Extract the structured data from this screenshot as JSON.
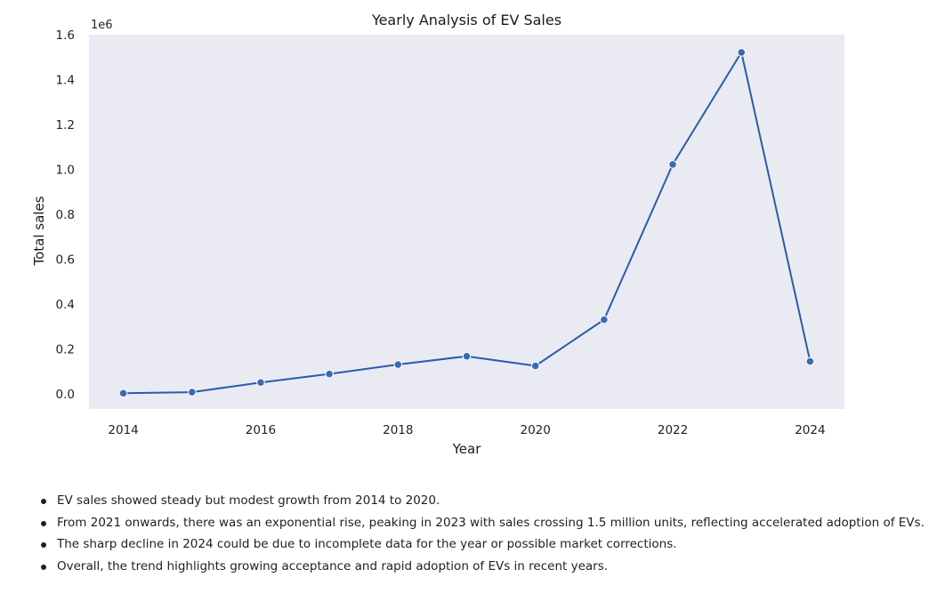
{
  "chart_data": {
    "type": "line",
    "title": "Yearly Analysis of EV Sales",
    "xlabel": "Year",
    "ylabel": "Total sales",
    "y_scale_label": "1e6",
    "x": [
      2014,
      2015,
      2016,
      2017,
      2018,
      2019,
      2020,
      2021,
      2022,
      2023,
      2024
    ],
    "series": [
      {
        "values": [
          2000,
          7000,
          50000,
          88000,
          130000,
          167000,
          124000,
          330000,
          1022000,
          1521000,
          144000
        ]
      }
    ],
    "xticks": [
      2014,
      2016,
      2018,
      2020,
      2022,
      2024
    ],
    "xtick_labels": [
      "2014",
      "2016",
      "2018",
      "2020",
      "2022",
      "2024"
    ],
    "yticks": [
      0,
      200000,
      400000,
      600000,
      800000,
      1000000,
      1200000,
      1400000,
      1600000
    ],
    "ytick_labels": [
      "0.0",
      "0.2",
      "0.4",
      "0.6",
      "0.8",
      "1.0",
      "1.2",
      "1.4",
      "1.6"
    ],
    "xlim": [
      2013.5,
      2024.5
    ],
    "ylim": [
      -68000,
      1600000
    ],
    "grid": false,
    "background": "#eaeaf2",
    "line_color": "#2a5caa",
    "marker_fill": "#3a6cb5"
  },
  "notes": [
    "EV sales showed steady but modest growth from 2014 to 2020.",
    "From 2021 onwards, there was an exponential rise, peaking in 2023 with sales crossing 1.5 million units, reflecting accelerated adoption of EVs.",
    "The sharp decline in 2024 could be due to incomplete data for the year or possible market corrections.",
    "Overall, the trend highlights growing acceptance and rapid adoption of EVs in recent years."
  ]
}
